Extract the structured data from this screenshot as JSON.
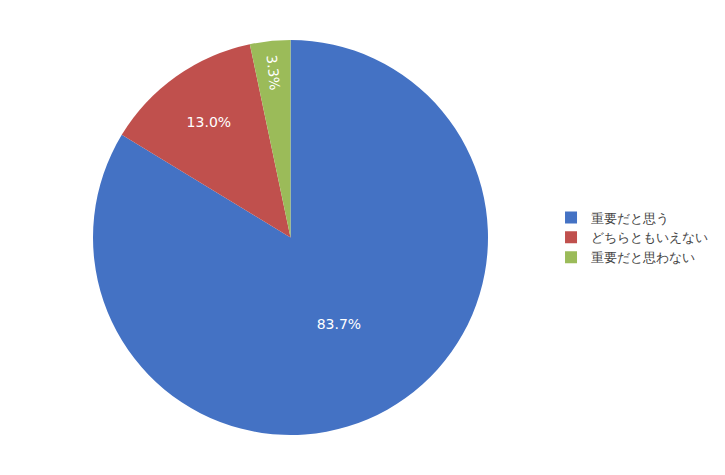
{
  "chart_data": {
    "type": "pie",
    "categories": [
      "重要だと思う",
      "どちらともいえない",
      "重要だと思わない"
    ],
    "values": [
      83.7,
      13.0,
      3.3
    ],
    "value_labels": [
      "83.7%",
      "13.0%",
      "3.3%"
    ],
    "colors": [
      "#4472C4",
      "#C0504D",
      "#9BBB59"
    ],
    "data_labels": true,
    "legend": "right"
  }
}
